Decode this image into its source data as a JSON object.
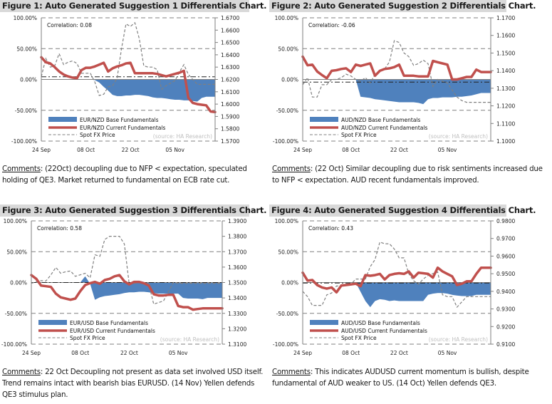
{
  "figures": [
    {
      "title": "Figure 1: Auto Generated Suggestion 1 Differentials Chart.",
      "comment_label": "Comments",
      "comment_text": " (22Oct) decoupling due to NFP < expectation, speculated holding of QE3. Market returned to fundamental on ECB rate cut."
    },
    {
      "title": "Figure 2: Auto Generated Suggestion 2 Differentials Chart.",
      "comment_label": "Comments",
      "comment_text": " (22 Oct) Similar decoupling due to risk sentiments increased due to NFP < expectation. AUD recent fundamentals improved."
    },
    {
      "title": "Figure 3: Auto Generated Suggestion 3 Differentials Chart.",
      "comment_label": "Comments",
      "comment_text": " 22 Oct Decoupling not present as data set involved USD itself. Trend remains intact with bearish bias EURUSD.  (14 Nov) Yellen defends QE3 stimulus plan."
    },
    {
      "title": "Figure 4: Auto Generated Suggestion 4 Differentials Chart.",
      "comment_label": "Comments",
      "comment_text": " This indicates AUDUSD current momentum is bullish, despite fundamental of AUD weaker to US. (14 Oct) Yellen defends QE3."
    }
  ],
  "colors": {
    "base": "#4f81bd",
    "current": "#c0504d",
    "spot": "#808080",
    "grid": "#808080",
    "title_bg": "#d9d9d9"
  },
  "chart_data": [
    {
      "type": "area+line",
      "correlation_label": "Correlation: 0.08",
      "source_label": "(source: HA Research)",
      "x_tick_labels": [
        "24 Sep",
        "08 Oct",
        "22 Oct",
        "05 Nov"
      ],
      "x_tick_index": [
        0,
        10,
        20,
        30
      ],
      "y_left_ticks": [
        "100.00%",
        "50.00%",
        "0.00%",
        "-50.00%",
        "-100.00%"
      ],
      "y_left_range": [
        -100,
        100
      ],
      "y_right_ticks": [
        "1.6700",
        "1.6600",
        "1.6500",
        "1.6400",
        "1.6300",
        "1.6200",
        "1.6100",
        "1.6000",
        "1.5900",
        "1.5800",
        "1.5700"
      ],
      "y_right_range": [
        1.57,
        1.67
      ],
      "spot_reference": 1.6222,
      "legend": [
        "EUR/NZD Base Fundamentals",
        "EUR/NZD Current Fundamentals",
        "Spot FX Price"
      ],
      "base": [
        0,
        0,
        0,
        0,
        0,
        0,
        0,
        0,
        0,
        0,
        0,
        0,
        -1,
        -5,
        -12,
        -18,
        -25,
        -27,
        -27,
        -26,
        -26,
        -25,
        -25,
        -26,
        -27,
        -29,
        -30,
        -30,
        -31,
        -32,
        -33,
        -33,
        -34,
        -34,
        -35,
        -36,
        -30,
        -28,
        -28,
        -28
      ],
      "current": [
        36,
        28,
        26,
        20,
        13,
        8,
        5,
        3,
        2,
        15,
        19,
        19,
        21,
        24,
        27,
        13,
        18,
        21,
        23,
        26,
        27,
        10,
        10,
        10,
        10,
        10,
        9,
        7,
        5,
        7,
        9,
        11,
        14,
        -30,
        -38,
        -40,
        -41,
        -42,
        -52,
        -53
      ],
      "spot": [
        1.6222,
        1.637,
        1.63,
        1.631,
        1.641,
        1.632,
        1.634,
        1.635,
        1.633,
        1.625,
        1.625,
        1.625,
        1.618,
        1.607,
        1.608,
        1.614,
        1.615,
        1.621,
        1.645,
        1.665,
        1.663,
        1.666,
        1.653,
        1.631,
        1.63,
        1.63,
        1.628,
        1.612,
        1.615,
        1.617,
        1.619,
        1.626,
        1.632,
        1.624,
        1.62,
        1.616,
        1.616,
        1.616,
        1.616,
        1.616
      ]
    },
    {
      "type": "area+line",
      "correlation_label": "Correlation: -0.06",
      "source_label": "(source: HA Research)",
      "x_tick_labels": [
        "24 Sep",
        "08 Oct",
        "22 Oct",
        "05 Nov"
      ],
      "x_tick_index": [
        0,
        10,
        20,
        30
      ],
      "y_left_ticks": [
        "100.00%",
        "50.00%",
        "0.00%",
        "-50.00%",
        "-100.00%"
      ],
      "y_left_range": [
        -100,
        100
      ],
      "y_right_ticks": [
        "1.1700",
        "1.1600",
        "1.1500",
        "1.1400",
        "1.1300",
        "1.1200",
        "1.1100",
        "1.1000"
      ],
      "y_right_range": [
        1.1,
        1.17
      ],
      "spot_reference": 1.1335,
      "legend": [
        "AUD/NZD Base Fundamentals",
        "AUD/NZD Current Fundamentals",
        "Spot FX Price"
      ],
      "base": [
        0,
        0,
        0,
        0,
        0,
        0,
        0,
        0,
        0,
        0,
        0,
        0,
        -28,
        -29,
        -30,
        -32,
        -33,
        -34,
        -35,
        -36,
        -37,
        -37,
        -37,
        -37,
        -38,
        -40,
        -32,
        -30,
        -30,
        -29,
        -29,
        -29,
        -28,
        -28,
        -27,
        -26,
        -24,
        -22,
        -22,
        -22
      ],
      "current": [
        37,
        23,
        24,
        13,
        7,
        2,
        14,
        15,
        17,
        18,
        12,
        24,
        22,
        24,
        26,
        6,
        14,
        17,
        18,
        20,
        24,
        6,
        6,
        6,
        5,
        5,
        5,
        30,
        28,
        26,
        24,
        0,
        0,
        2,
        4,
        4,
        16,
        12,
        12,
        12
      ],
      "spot": [
        1.132,
        1.136,
        1.125,
        1.125,
        1.132,
        1.132,
        1.135,
        1.135,
        1.136,
        1.138,
        1.137,
        1.135,
        1.134,
        1.136,
        1.133,
        1.138,
        1.14,
        1.141,
        1.145,
        1.157,
        1.156,
        1.15,
        1.148,
        1.143,
        1.144,
        1.146,
        1.144,
        1.131,
        1.135,
        1.134,
        1.133,
        1.129,
        1.125,
        1.123,
        1.122,
        1.122,
        1.122,
        1.122,
        1.122,
        1.122
      ]
    },
    {
      "type": "area+line",
      "correlation_label": "Correlation: 0.58",
      "source_label": "(source: HA Research)",
      "x_tick_labels": [
        "24 Sep",
        "08 Oct",
        "22 Oct",
        "05 Nov"
      ],
      "x_tick_index": [
        0,
        10,
        20,
        30
      ],
      "y_left_ticks": [
        "100.00%",
        "50.00%",
        "0.00%",
        "-50.00%",
        "-100.00%"
      ],
      "y_left_range": [
        -100,
        100
      ],
      "y_right_ticks": [
        "1.3900",
        "1.3800",
        "1.3700",
        "1.3600",
        "1.3500",
        "1.3400",
        "1.3300",
        "1.3200",
        "1.3100"
      ],
      "y_right_range": [
        1.31,
        1.39
      ],
      "spot_reference": 1.35,
      "legend": [
        "EUR/USD Base Fundamentals",
        "EUR/USD Current Fundamentals",
        "Spot FX Price"
      ],
      "base": [
        0,
        0,
        0,
        0,
        0,
        0,
        0,
        0,
        0,
        0,
        0,
        10,
        -2,
        -28,
        -24,
        -22,
        -21,
        -20,
        -19,
        -17,
        -16,
        -16,
        -15,
        -15,
        -16,
        -17,
        -18,
        -18,
        -18,
        -18,
        -18,
        -25,
        -26,
        -26,
        -26,
        -27,
        -25,
        -25,
        -25,
        -25
      ],
      "current": [
        12,
        6,
        -5,
        -6,
        -7,
        -18,
        -24,
        -26,
        -28,
        -26,
        -14,
        -4,
        -1,
        1,
        -2,
        4,
        6,
        10,
        12,
        2,
        -3,
        1,
        1,
        -1,
        -5,
        -19,
        -21,
        -21,
        -20,
        -20,
        -38,
        -40,
        -40,
        -44,
        -43,
        -42,
        -42,
        -42,
        -42,
        -42
      ],
      "spot": [
        1.3495,
        1.3505,
        1.3512,
        1.351,
        1.355,
        1.3598,
        1.356,
        1.357,
        1.3575,
        1.354,
        1.355,
        1.356,
        1.353,
        1.368,
        1.367,
        1.378,
        1.38,
        1.38,
        1.38,
        1.375,
        1.349,
        1.3495,
        1.3498,
        1.35,
        1.349,
        1.336,
        1.337,
        1.338,
        1.344,
        1.35,
        1.3495,
        1.3495,
        1.3495,
        1.3495,
        1.3495,
        1.3495,
        1.3495,
        1.3495,
        1.3495,
        1.3495
      ]
    },
    {
      "type": "area+line",
      "correlation_label": "Correlation: 0.43",
      "source_label": "(source: HA Research)",
      "x_tick_labels": [
        "24 Sep",
        "08 Oct",
        "22 Oct",
        "05 Nov"
      ],
      "x_tick_index": [
        0,
        10,
        20,
        30
      ],
      "y_left_ticks": [
        "100.00%",
        "50.00%",
        "0.00%",
        "-50.00%",
        "-100.00%"
      ],
      "y_left_range": [
        -100,
        100
      ],
      "y_right_ticks": [
        "0.9800",
        "0.9700",
        "0.9600",
        "0.9500",
        "0.9400",
        "0.9300",
        "0.9200",
        "0.9100"
      ],
      "y_right_range": [
        0.91,
        0.98
      ],
      "spot_reference": 0.9447,
      "legend": [
        "AUD/USD Base Fundamentals",
        "AUD/USD Current Fundamentals",
        "Spot FX Price"
      ],
      "base": [
        0,
        0,
        0,
        0,
        0,
        0,
        0,
        0,
        0,
        0,
        0,
        0,
        -15,
        -30,
        -40,
        -30,
        -27,
        -28,
        -30,
        -29,
        -30,
        -30,
        -30,
        -30,
        -30,
        -30,
        -20,
        -18,
        -17,
        -17,
        -18,
        -20,
        -21,
        -22,
        -22,
        -22,
        -20,
        -20,
        -20,
        -20
      ],
      "current": [
        16,
        3,
        4,
        -4,
        -8,
        -10,
        -8,
        -16,
        -5,
        -4,
        -3,
        -2,
        -6,
        12,
        11,
        12,
        14,
        5,
        12,
        14,
        15,
        14,
        18,
        8,
        16,
        15,
        14,
        8,
        24,
        18,
        14,
        10,
        -4,
        -2,
        2,
        2,
        14,
        24,
        24,
        24
      ],
      "spot": [
        0.94,
        0.937,
        0.932,
        0.932,
        0.932,
        0.938,
        0.939,
        0.943,
        0.943,
        0.944,
        0.944,
        0.947,
        0.947,
        0.947,
        0.954,
        0.958,
        0.968,
        0.967,
        0.967,
        0.964,
        0.959,
        0.959,
        0.95,
        0.946,
        0.944,
        0.947,
        0.949,
        0.95,
        0.951,
        0.938,
        0.937,
        0.937,
        0.931,
        0.934,
        0.937,
        0.937,
        0.937,
        0.937,
        0.937,
        0.937
      ]
    }
  ]
}
